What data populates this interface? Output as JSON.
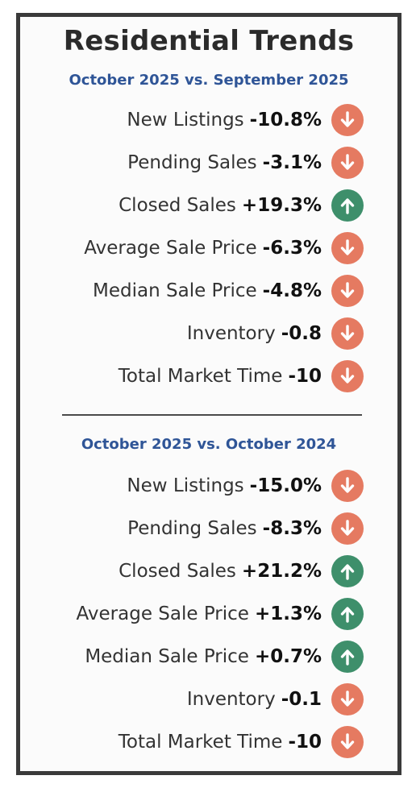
{
  "title": "Residential Trends",
  "colors": {
    "down": "#e57a61",
    "up": "#3e8f6b",
    "subhead": "#2f5597"
  },
  "sections": [
    {
      "heading": "October 2025 vs. September 2025",
      "rows": [
        {
          "label": "New Listings",
          "value": "-10.8%",
          "direction": "down",
          "icon": "arrow-down-icon"
        },
        {
          "label": "Pending Sales",
          "value": "-3.1%",
          "direction": "down",
          "icon": "arrow-down-icon"
        },
        {
          "label": "Closed Sales",
          "value": "+19.3%",
          "direction": "up",
          "icon": "arrow-up-icon"
        },
        {
          "label": "Average Sale Price",
          "value": "-6.3%",
          "direction": "down",
          "icon": "arrow-down-icon"
        },
        {
          "label": "Median Sale Price",
          "value": "-4.8%",
          "direction": "down",
          "icon": "arrow-down-icon"
        },
        {
          "label": "Inventory",
          "value": "-0.8",
          "direction": "down",
          "icon": "arrow-down-icon"
        },
        {
          "label": "Total Market Time",
          "value": "-10",
          "direction": "down",
          "icon": "arrow-down-icon"
        }
      ]
    },
    {
      "heading": "October 2025 vs. October 2024",
      "rows": [
        {
          "label": "New Listings",
          "value": "-15.0%",
          "direction": "down",
          "icon": "arrow-down-icon"
        },
        {
          "label": "Pending Sales",
          "value": "-8.3%",
          "direction": "down",
          "icon": "arrow-down-icon"
        },
        {
          "label": "Closed Sales",
          "value": "+21.2%",
          "direction": "up",
          "icon": "arrow-up-icon"
        },
        {
          "label": "Average Sale Price",
          "value": "+1.3%",
          "direction": "up",
          "icon": "arrow-up-icon"
        },
        {
          "label": "Median Sale Price",
          "value": "+0.7%",
          "direction": "up",
          "icon": "arrow-up-icon"
        },
        {
          "label": "Inventory",
          "value": "-0.1",
          "direction": "down",
          "icon": "arrow-down-icon"
        },
        {
          "label": "Total Market Time",
          "value": "-10",
          "direction": "down",
          "icon": "arrow-down-icon"
        }
      ]
    }
  ]
}
